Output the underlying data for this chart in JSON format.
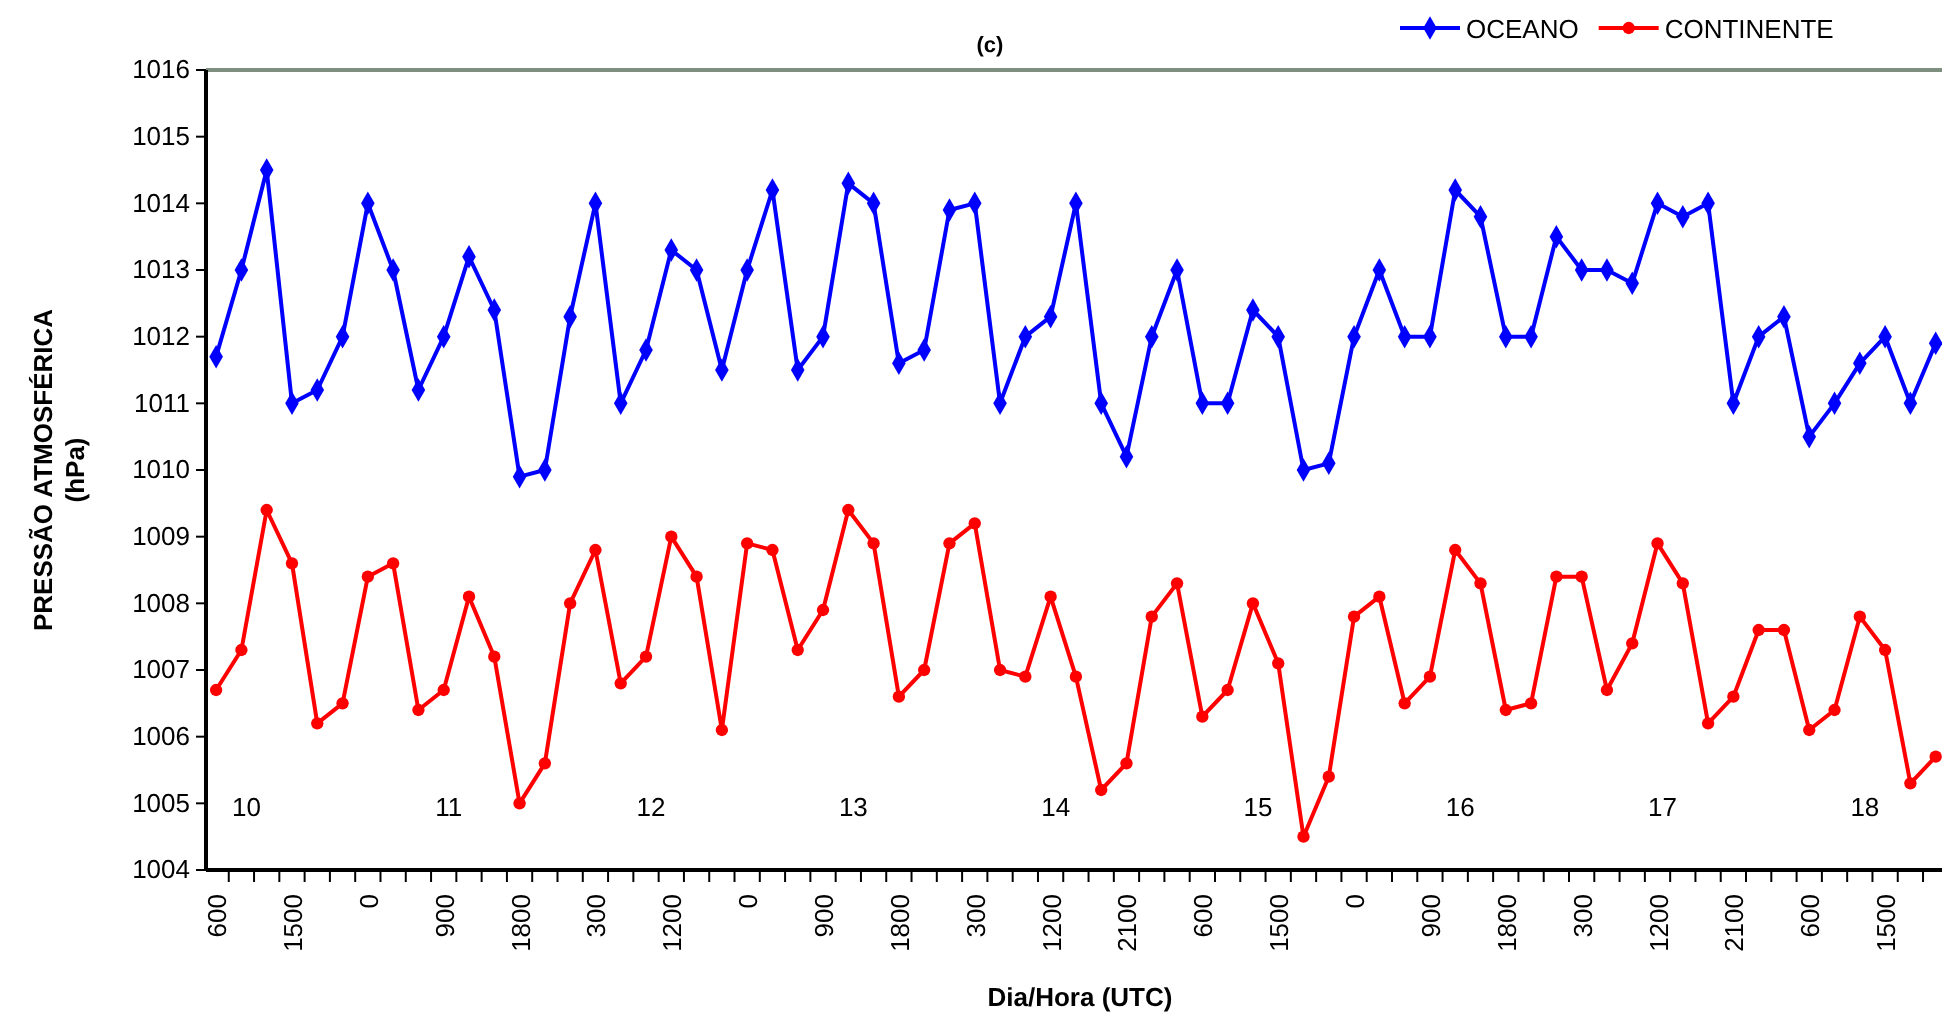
{
  "chart_data": {
    "type": "line",
    "title": "(c)",
    "xlabel": "Dia/Hora (UTC)",
    "ylabel": "PRESSÃO ATMOSFÉRICA (hPa)",
    "categories": [
      "600",
      null,
      null,
      "1500",
      null,
      null,
      "0",
      null,
      null,
      "900",
      null,
      null,
      "1800",
      null,
      null,
      "300",
      null,
      null,
      "1200",
      null,
      null,
      "0",
      null,
      null,
      "900",
      null,
      null,
      "1800",
      null,
      null,
      "300",
      null,
      null,
      "1200",
      null,
      null,
      "2100",
      null,
      null,
      "600",
      null,
      null,
      "1500",
      null,
      null,
      "0",
      null,
      null,
      "900",
      null,
      null,
      "1800",
      null,
      null,
      "300",
      null,
      null,
      "1200",
      null,
      null,
      "2100",
      null,
      null,
      "600",
      null,
      null,
      "1500",
      null,
      null
    ],
    "series": [
      {
        "name": "OCEANO",
        "color": "#0000ff",
        "marker": "diamond",
        "values": [
          1011.7,
          1013.0,
          1014.5,
          1011.0,
          1011.2,
          1012.0,
          1014.0,
          1013.0,
          1011.2,
          1012.0,
          1013.2,
          1012.4,
          1009.9,
          1010.0,
          1012.3,
          1014.0,
          1011.0,
          1011.8,
          1013.3,
          1013.0,
          1011.5,
          1013.0,
          1014.2,
          1011.5,
          1012.0,
          1014.3,
          1014.0,
          1011.6,
          1011.8,
          1013.9,
          1014.0,
          1011.0,
          1012.0,
          1012.3,
          1014.0,
          1011.0,
          1010.2,
          1012.0,
          1013.0,
          1011.0,
          1011.0,
          1012.4,
          1012.0,
          1010.0,
          1010.1,
          1012.0,
          1013.0,
          1012.0,
          1012.0,
          1014.2,
          1013.8,
          1012.0,
          1012.0,
          1013.5,
          1013.0,
          1013.0,
          1012.8,
          1014.0,
          1013.8,
          1014.0,
          1011.0,
          1012.0,
          1012.3,
          1010.5,
          1011.0,
          1011.6,
          1012.0,
          1011.0,
          1011.9
        ]
      },
      {
        "name": "CONTINENTE",
        "color": "#ff0000",
        "marker": "circle",
        "values": [
          1006.7,
          1007.3,
          1009.4,
          1008.6,
          1006.2,
          1006.5,
          1008.4,
          1008.6,
          1006.4,
          1006.7,
          1008.1,
          1007.2,
          1005.0,
          1005.6,
          1008.0,
          1008.8,
          1006.8,
          1007.2,
          1009.0,
          1008.4,
          1006.1,
          1008.9,
          1008.8,
          1007.3,
          1007.9,
          1009.4,
          1008.9,
          1006.6,
          1007.0,
          1008.9,
          1009.2,
          1007.0,
          1006.9,
          1008.1,
          1006.9,
          1005.2,
          1005.6,
          1007.8,
          1008.3,
          1006.3,
          1006.7,
          1008.0,
          1007.1,
          1004.5,
          1005.4,
          1007.8,
          1008.1,
          1006.5,
          1006.9,
          1008.8,
          1008.3,
          1006.4,
          1006.5,
          1008.4,
          1008.4,
          1006.7,
          1007.4,
          1008.9,
          1008.3,
          1006.2,
          1006.6,
          1007.6,
          1007.6,
          1006.1,
          1006.4,
          1007.8,
          1007.3,
          1005.3,
          1005.7
        ]
      }
    ],
    "ylim": [
      1004,
      1016
    ],
    "yticks": [
      1004,
      1005,
      1006,
      1007,
      1008,
      1009,
      1010,
      1011,
      1012,
      1013,
      1014,
      1015,
      1016
    ],
    "annotations": [
      "10",
      "11",
      "12",
      "13",
      "14",
      "15",
      "16",
      "17",
      "18"
    ],
    "grid": false,
    "legend": "top right",
    "line_style": "solid"
  }
}
